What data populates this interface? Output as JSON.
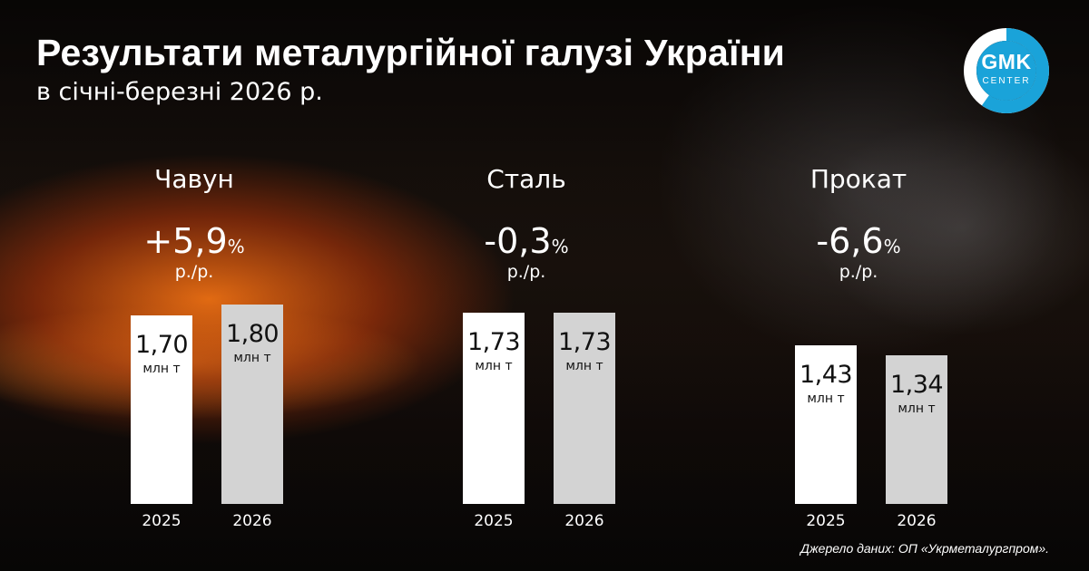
{
  "header": {
    "title": "Результати металургійної галузі України",
    "subtitle": "в січні-березні 2026 р."
  },
  "logo": {
    "text": "GMK",
    "subtext": "CENTER",
    "ring_color": "#1aa3d9"
  },
  "source": "Джерело даних: ОП «Укрметалургпром».",
  "colors": {
    "bar_2025": "#ffffff",
    "bar_2026": "#d3d3d3",
    "label_text": "#111111"
  },
  "chart_data": {
    "type": "bar",
    "unit": "млн т",
    "ylim": [
      0,
      1.9
    ],
    "groups": [
      {
        "name": "Чавун",
        "change": "+5,9",
        "change_unit": "%",
        "change_basis": "р./р.",
        "bars": [
          {
            "year": "2025",
            "value": 1.7,
            "label": "1,70",
            "unit": "млн т"
          },
          {
            "year": "2026",
            "value": 1.8,
            "label": "1,80",
            "unit": "млн т"
          }
        ]
      },
      {
        "name": "Сталь",
        "change": "-0,3",
        "change_unit": "%",
        "change_basis": "р./р.",
        "bars": [
          {
            "year": "2025",
            "value": 1.73,
            "label": "1,73",
            "unit": "млн т"
          },
          {
            "year": "2026",
            "value": 1.73,
            "label": "1,73",
            "unit": "млн т"
          }
        ]
      },
      {
        "name": "Прокат",
        "change": "-6,6",
        "change_unit": "%",
        "change_basis": "р./р.",
        "bars": [
          {
            "year": "2025",
            "value": 1.43,
            "label": "1,43",
            "unit": "млн т"
          },
          {
            "year": "2026",
            "value": 1.34,
            "label": "1,34",
            "unit": "млн т"
          }
        ]
      }
    ]
  }
}
